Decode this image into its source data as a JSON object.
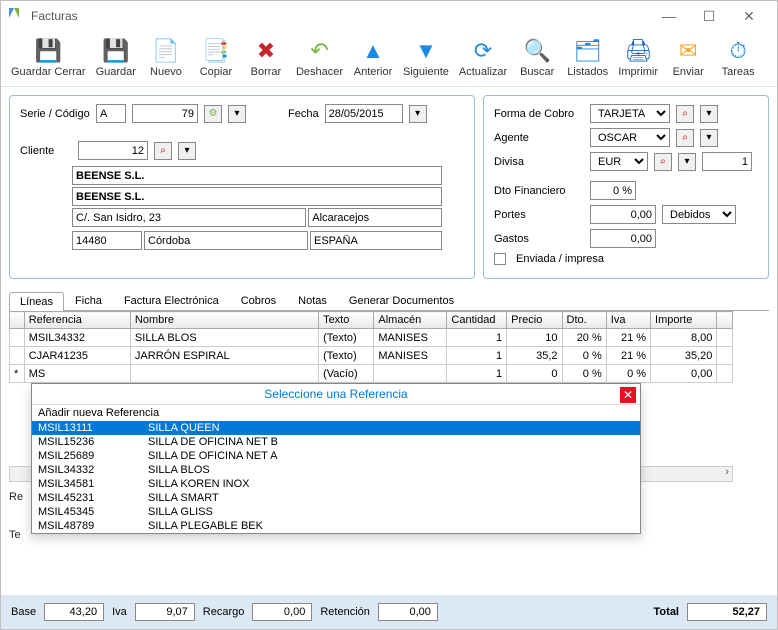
{
  "window": {
    "title": "Facturas"
  },
  "toolbar": [
    {
      "name": "guardar-cerrar",
      "label": "Guardar Cerrar",
      "glyph": "💾",
      "color": "#1e5aa8"
    },
    {
      "name": "guardar",
      "label": "Guardar",
      "glyph": "💾",
      "color": "#1e5aa8"
    },
    {
      "name": "nuevo",
      "label": "Nuevo",
      "glyph": "📄",
      "color": "#7cb342"
    },
    {
      "name": "copiar",
      "label": "Copiar",
      "glyph": "📑",
      "color": "#e53935"
    },
    {
      "name": "borrar",
      "label": "Borrar",
      "glyph": "✖",
      "color": "#c62828"
    },
    {
      "name": "deshacer",
      "label": "Deshacer",
      "glyph": "↶",
      "color": "#7cb342"
    },
    {
      "name": "anterior",
      "label": "Anterior",
      "glyph": "▲",
      "color": "#1e88e5"
    },
    {
      "name": "siguiente",
      "label": "Siguiente",
      "glyph": "▼",
      "color": "#1e88e5"
    },
    {
      "name": "actualizar",
      "label": "Actualizar",
      "glyph": "⟳",
      "color": "#1e88e5"
    },
    {
      "name": "buscar",
      "label": "Buscar",
      "glyph": "🔍",
      "color": "#555"
    },
    {
      "name": "listados",
      "label": "Listados",
      "glyph": "🗂",
      "color": "#1e88e5"
    },
    {
      "name": "imprimir",
      "label": "Imprimir",
      "glyph": "🖨",
      "color": "#1565c0"
    },
    {
      "name": "enviar",
      "label": "Enviar",
      "glyph": "✉",
      "color": "#f9a825"
    },
    {
      "name": "tareas",
      "label": "Tareas",
      "glyph": "⏱",
      "color": "#1e88e5"
    }
  ],
  "left": {
    "serie_lbl": "Serie / Código",
    "serie": "A",
    "codigo": "79",
    "fecha_lbl": "Fecha",
    "fecha": "28/05/2015",
    "cliente_lbl": "Cliente",
    "cliente_id": "12",
    "nombre1": "BEENSE S.L.",
    "nombre2": "BEENSE S.L.",
    "dir": "C/. San Isidro, 23",
    "loc": "Alcaracejos",
    "cp": "14480",
    "prov": "Córdoba",
    "pais": "ESPAÑA"
  },
  "right": {
    "forma_cobro_lbl": "Forma de Cobro",
    "forma_cobro": "TARJETA",
    "agente_lbl": "Agente",
    "agente": "OSCAR",
    "divisa_lbl": "Divisa",
    "divisa": "EUR",
    "divisa_rate": "1",
    "dto_fin_lbl": "Dto Financiero",
    "dto_fin": "0 %",
    "portes_lbl": "Portes",
    "portes": "0,00",
    "portes_tipo": "Debidos",
    "gastos_lbl": "Gastos",
    "gastos": "0,00",
    "enviada_lbl": "Enviada / impresa"
  },
  "tabs": [
    "Líneas",
    "Ficha",
    "Factura Electrónica",
    "Cobros",
    "Notas",
    "Generar Documentos"
  ],
  "grid": {
    "headers": [
      "Referencia",
      "Nombre",
      "Texto",
      "Almacén",
      "Cantidad",
      "Precio",
      "Dto.",
      "Iva",
      "Importe"
    ],
    "rows": [
      {
        "ref": "MSIL34332",
        "nom": "SILLA BLOS",
        "txt": "(Texto)",
        "alm": "MANISES",
        "cant": "1",
        "prec": "10",
        "dto": "20 %",
        "iva": "21 %",
        "imp": "8,00"
      },
      {
        "ref": "CJAR41235",
        "nom": "JARRÓN ESPIRAL",
        "txt": "(Texto)",
        "alm": "MANISES",
        "cant": "1",
        "prec": "35,2",
        "dto": "0 %",
        "iva": "21 %",
        "imp": "35,20"
      },
      {
        "star": "*",
        "ref": "MS",
        "nom": "",
        "txt": "(Vacío)",
        "alm": "",
        "cant": "1",
        "prec": "0",
        "dto": "0 %",
        "iva": "0 %",
        "imp": "0,00"
      }
    ]
  },
  "popup": {
    "title": "Seleccione una Referencia",
    "sub": "Añadir nueva Referencia",
    "items": [
      {
        "ref": "MSIL13111",
        "nom": "SILLA QUEEN",
        "sel": true
      },
      {
        "ref": "MSIL15236",
        "nom": "SILLA DE OFICINA NET B"
      },
      {
        "ref": "MSIL25689",
        "nom": "SILLA DE OFICINA NET A"
      },
      {
        "ref": "MSIL34332",
        "nom": "SILLA BLOS"
      },
      {
        "ref": "MSIL34581",
        "nom": "SILLA KOREN INOX"
      },
      {
        "ref": "MSIL45231",
        "nom": "SILLA SMART"
      },
      {
        "ref": "MSIL45345",
        "nom": "SILLA GLISS"
      },
      {
        "ref": "MSIL48789",
        "nom": "SILLA PLEGABLE BEK"
      }
    ]
  },
  "bottom_btns": {
    "r": "R"
  },
  "faint": {
    "r": "Re",
    "t": "Te"
  },
  "totals": {
    "base_lbl": "Base",
    "base": "43,20",
    "iva_lbl": "Iva",
    "iva": "9,07",
    "recargo_lbl": "Recargo",
    "recargo": "0,00",
    "retencion_lbl": "Retención",
    "retencion": "0,00",
    "total_lbl": "Total",
    "total": "52,27"
  }
}
